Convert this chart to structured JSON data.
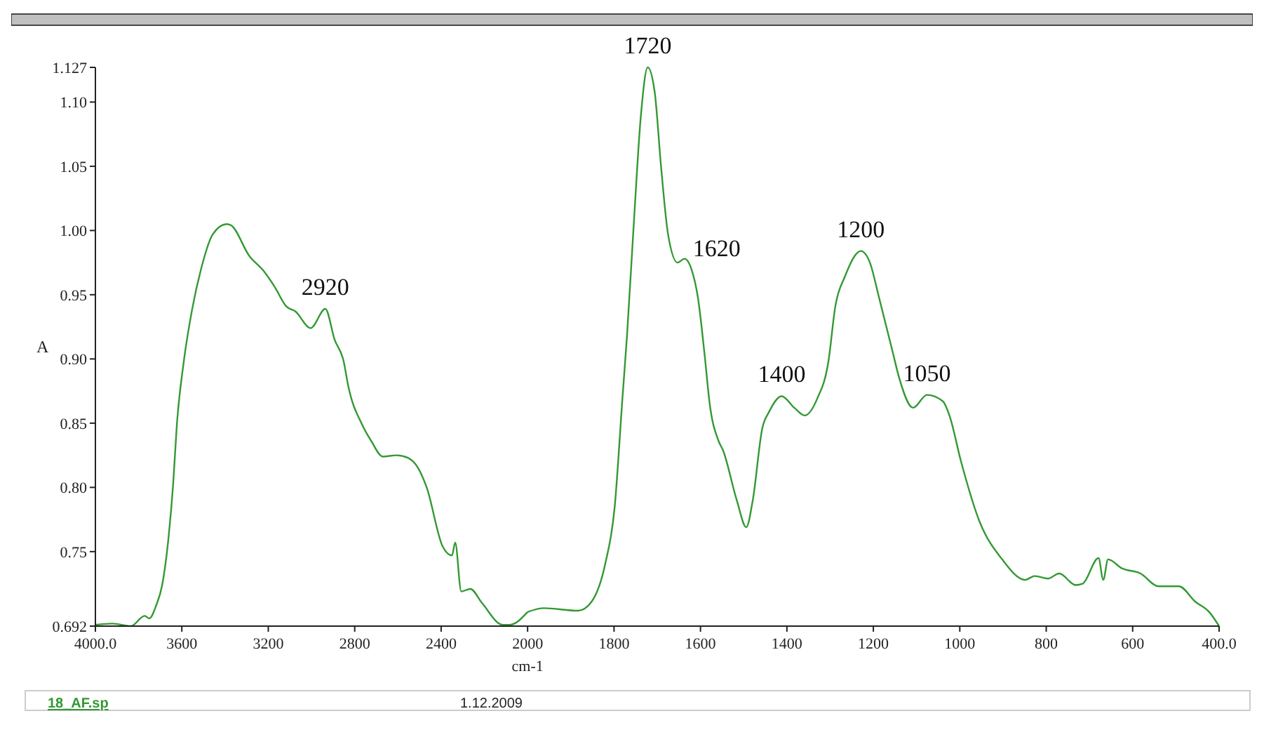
{
  "chart_data": [
    {
      "type": "line",
      "ylabel": "A",
      "xlim": [
        4000,
        2000
      ],
      "ylim": [
        0.692,
        1.127
      ],
      "xticks": [
        {
          "value": 4000,
          "label": "4000.0"
        },
        3600,
        3200,
        2800,
        2400,
        2000
      ],
      "yticks": [
        0.692,
        0.75,
        {
          "value": 0.8,
          "label": "0.80"
        },
        0.85,
        {
          "value": 0.9,
          "label": "0.90"
        },
        0.95,
        {
          "value": 1,
          "label": "1.00"
        },
        1.05,
        {
          "value": 1.1,
          "label": "1.10"
        },
        1.127
      ],
      "x": [
        4000,
        3921,
        3836,
        3772,
        3751,
        3719,
        3691,
        3666,
        3640,
        3623,
        3591,
        3553,
        3511,
        3457,
        3393,
        3372,
        3287,
        3224,
        3170,
        3117,
        3074,
        3004,
        2936,
        2893,
        2851,
        2830,
        2766,
        2723,
        2670,
        2606,
        2553,
        2510,
        2467,
        2393,
        2350,
        2335,
        2307,
        2265,
        2211,
        2115,
        2083,
        2000
      ],
      "series": [
        {
          "color": "#339933",
          "values": [
            0.693,
            0.694,
            0.692,
            0.7,
            0.698,
            0.708,
            0.724,
            0.754,
            0.803,
            0.849,
            0.898,
            0.938,
            0.97,
            0.997,
            1.005,
            1.004,
            0.98,
            0.969,
            0.956,
            0.941,
            0.937,
            0.924,
            0.939,
            0.915,
            0.898,
            0.879,
            0.849,
            0.836,
            0.824,
            0.825,
            0.823,
            0.816,
            0.8,
            0.754,
            0.747,
            0.757,
            0.719,
            0.721,
            0.71,
            0.693,
            0.693,
            0.703
          ]
        }
      ],
      "annotations": [
        {
          "text": "2920",
          "x": 2936,
          "y": 0.939
        },
        "18_AF.sp",
        "1.12.2009"
      ]
    },
    {
      "type": "line",
      "xlabel": "cm-1",
      "tick_labels": "x",
      "xlim": [
        2000,
        400
      ],
      "ylim": [
        0.692,
        1.127
      ],
      "xticks": [
        1800,
        1600,
        1400,
        1200,
        1000,
        800,
        600,
        {
          "value": 400,
          "label": "400.0"
        }
      ],
      "x": [
        2000,
        1963,
        1883,
        1852,
        1820,
        1799,
        1780,
        1770,
        1754,
        1738,
        1722,
        1706,
        1691,
        1675,
        1653,
        1637,
        1621,
        1606,
        1590,
        1579,
        1558,
        1548,
        1516,
        1494,
        1479,
        1457,
        1441,
        1412,
        1383,
        1359,
        1330,
        1304,
        1288,
        1266,
        1229,
        1208,
        1187,
        1155,
        1140,
        1108,
        1076,
        1039,
        1024,
        997,
        955,
        902,
        849,
        827,
        796,
        770,
        732,
        716,
        679,
        668,
        657,
        625,
        582,
        540,
        493,
        455,
        423,
        400
      ],
      "series": [
        {
          "color": "#339933",
          "values": [
            0.703,
            0.706,
            0.704,
            0.711,
            0.741,
            0.783,
            0.872,
            0.918,
            1.007,
            1.089,
            1.127,
            1.108,
            1.049,
            0.997,
            0.975,
            0.978,
            0.97,
            0.948,
            0.902,
            0.866,
            0.836,
            0.829,
            0.79,
            0.769,
            0.79,
            0.846,
            0.859,
            0.871,
            0.862,
            0.856,
            0.869,
            0.898,
            0.941,
            0.964,
            0.984,
            0.975,
            0.948,
            0.905,
            0.885,
            0.862,
            0.872,
            0.867,
            0.856,
            0.82,
            0.774,
            0.744,
            0.728,
            0.731,
            0.729,
            0.733,
            0.724,
            0.725,
            0.745,
            0.728,
            0.744,
            0.737,
            0.733,
            0.723,
            0.723,
            0.711,
            0.703,
            0.692
          ]
        }
      ],
      "annotations": [
        {
          "text": "1720",
          "x": 1722,
          "y": 1.127
        },
        {
          "text": "1620",
          "x": 1637,
          "y": 0.978
        },
        {
          "text": "1400",
          "x": 1412,
          "y": 0.871
        },
        {
          "text": "1200",
          "x": 1229,
          "y": 0.984
        },
        {
          "text": "1050",
          "x": 1076,
          "y": 0.872
        }
      ]
    }
  ]
}
